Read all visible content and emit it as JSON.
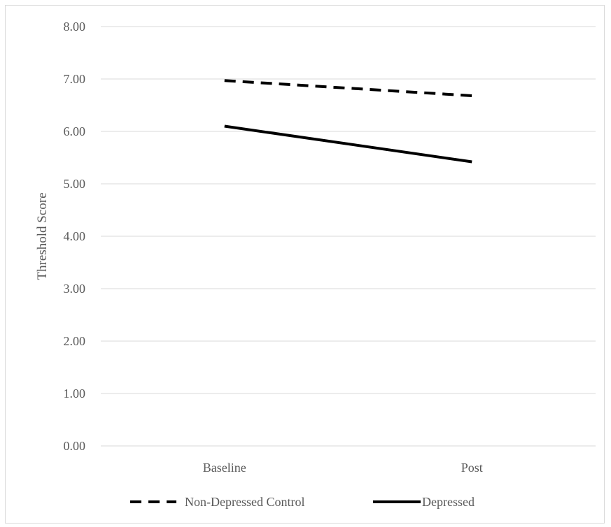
{
  "chart_data": {
    "type": "line",
    "title": "",
    "xlabel": "",
    "ylabel": "Threshold Score",
    "categories": [
      "Baseline",
      "Post"
    ],
    "ylim": [
      0,
      8
    ],
    "ytick_step": 1,
    "ytick_labels": [
      "0.00",
      "1.00",
      "2.00",
      "3.00",
      "4.00",
      "5.00",
      "6.00",
      "7.00",
      "8.00"
    ],
    "grid": true,
    "legend_position": "bottom",
    "series": [
      {
        "name": "Non-Depressed Control",
        "values": [
          6.97,
          6.68
        ],
        "style": "dashed",
        "color": "#000000"
      },
      {
        "name": "Depressed",
        "values": [
          6.1,
          5.42
        ],
        "style": "solid",
        "color": "#000000"
      }
    ]
  }
}
